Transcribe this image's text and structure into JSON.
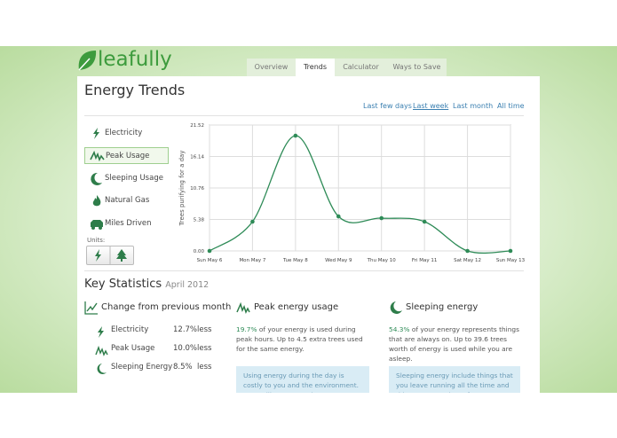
{
  "logo": "leafully",
  "tabs": [
    "Overview",
    "Trends",
    "Calculator",
    "Ways to Save"
  ],
  "title": "Energy Trends",
  "ranges": [
    "Last few days",
    "Last week",
    "Last month",
    "All time"
  ],
  "sidebar": {
    "items": [
      "Electricity",
      "Peak Usage",
      "Sleeping Usage",
      "Natural Gas",
      "Miles Driven"
    ],
    "units_label": "Units:"
  },
  "chart_data": {
    "type": "line",
    "y_label": "Trees purifying for a day",
    "categories": [
      "Sun May 6",
      "Mon May 7",
      "Tue May 8",
      "Wed May 9",
      "Thu May 10",
      "Fri May 11",
      "Sat May 12",
      "Sun May 13"
    ],
    "values": [
      0,
      5.0,
      19.7,
      5.9,
      5.6,
      5.0,
      0,
      0
    ],
    "color": "#2e8b57",
    "ylim": [
      0,
      21.52
    ],
    "yticks": [
      {
        "value": 0,
        "label": "0.00"
      },
      5.38,
      10.76,
      16.14,
      21.52
    ],
    "grid": true
  },
  "key_statistics": {
    "title": "Key Statistics",
    "period": "April 2012",
    "change": {
      "heading": "Change from previous month",
      "rows": [
        [
          "Electricity",
          "12.7%",
          "less"
        ],
        [
          "Peak Usage",
          "10.0%",
          "less"
        ],
        [
          "Sleeping Energy",
          "8.5%",
          "less"
        ]
      ]
    },
    "peak": {
      "heading": "Peak energy usage",
      "highlight": "19.7%",
      "text": "of your energy is used during peak hours. Up to 4.5 extra trees used for the same energy.",
      "note": "Using energy during the day is costly to you and the environment. Your utility may need to turn on less-"
    },
    "sleeping": {
      "heading": "Sleeping energy",
      "highlight": "54.3%",
      "text": "of your energy represents things that are always on. Up to 39.6 trees worth of energy is used while you are asleep.",
      "note": "Sleeping energy include things that you leave running all the time and things you may have forgot to turn"
    }
  }
}
